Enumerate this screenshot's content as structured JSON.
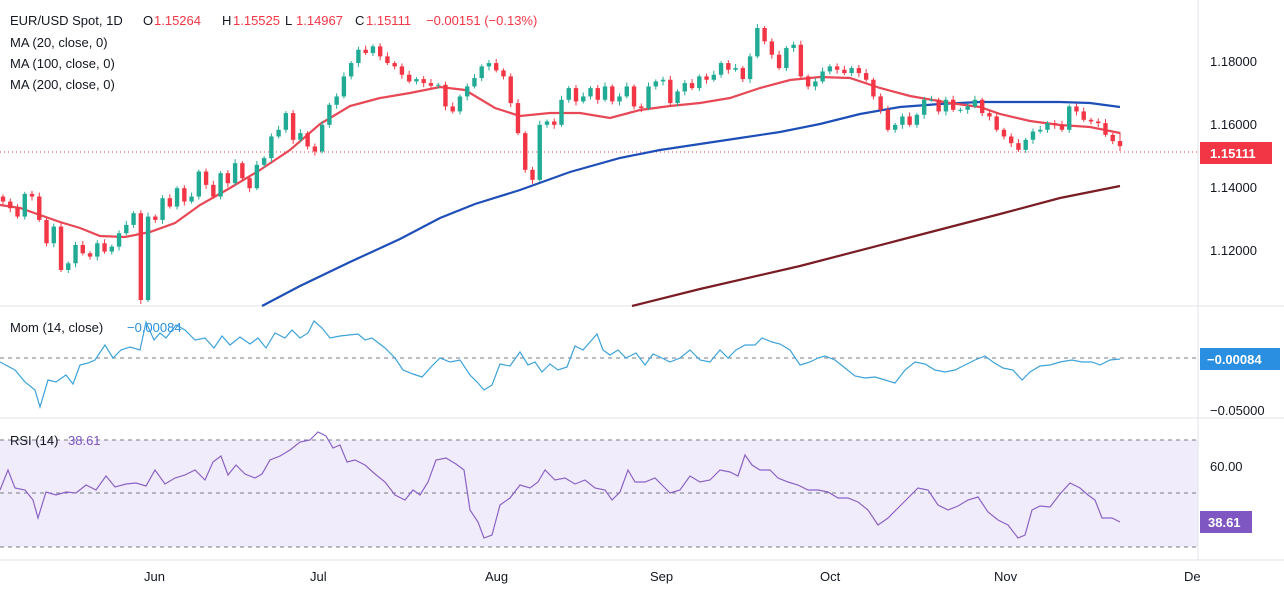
{
  "header": {
    "symbol": "EUR/USD Spot, 1D",
    "open_label": "O",
    "open": "1.15264",
    "high_label": "H",
    "high": "1.15525",
    "low_label": "L",
    "low": "1.14967",
    "close_label": "C",
    "close": "1.15111",
    "change": "−0.00151 (−0.13%)"
  },
  "legend": {
    "ma20": "MA (20, close, 0)",
    "ma100": "MA (100, close, 0)",
    "ma200": "MA (200, close, 0)",
    "mom": "Mom (14, close)",
    "mom_value": "−0.00084",
    "rsi": "RSI (14)",
    "rsi_value": "38.61"
  },
  "badges": {
    "price": "1.15111",
    "mom": "−0.00084",
    "rsi": "38.61"
  },
  "colors": {
    "up": "#22ab94",
    "down": "#f23645",
    "ma20": "#e84855",
    "ma100": "#1e4fb8",
    "ma200": "#7a1c24",
    "mom": "#3da3d9",
    "rsi": "#8a63c5",
    "rsi_band": "#f1ecfb",
    "price_badge": "#f23645",
    "mom_badge": "#2a8fe0",
    "rsi_badge": "#7e57c2"
  },
  "chart_data": [
    {
      "type": "candlestick",
      "title": "EUR/USD Spot, 1D",
      "x_ticks": [
        "Jun",
        "Jul",
        "Aug",
        "Sep",
        "Oct",
        "Nov",
        "De"
      ],
      "y_ticks": [
        "1.18000",
        "1.16000",
        "1.14000",
        "1.12000"
      ],
      "ylim": [
        1.1032,
        1.1925
      ],
      "last": {
        "open": 1.15264,
        "high": 1.15525,
        "low": 1.14967,
        "close": 1.15111
      },
      "closes": [
        1.1345,
        1.1325,
        1.13,
        1.1368,
        1.136,
        1.129,
        1.122,
        1.127,
        1.114,
        1.116,
        1.1215,
        1.119,
        1.118,
        1.122,
        1.1195,
        1.121,
        1.125,
        1.1275,
        1.131,
        1.105,
        1.13,
        1.129,
        1.1355,
        1.133,
        1.1385,
        1.1345,
        1.136,
        1.1435,
        1.1395,
        1.136,
        1.143,
        1.14,
        1.146,
        1.1415,
        1.1385,
        1.1455,
        1.1475,
        1.154,
        1.156,
        1.161,
        1.153,
        1.155,
        1.151,
        1.1495,
        1.1575,
        1.1635,
        1.166,
        1.172,
        1.176,
        1.18,
        1.179,
        1.181,
        1.178,
        1.176,
        1.175,
        1.1725,
        1.1705,
        1.1712,
        1.17,
        1.1692,
        1.1695,
        1.163,
        1.1615,
        1.166,
        1.169,
        1.1715,
        1.175,
        1.176,
        1.1738,
        1.172,
        1.164,
        1.155,
        1.144,
        1.141,
        1.1575,
        1.1585,
        1.1575,
        1.165,
        1.1685,
        1.1645,
        1.166,
        1.1685,
        1.165,
        1.169,
        1.1645,
        1.166,
        1.169,
        1.163,
        1.1625,
        1.169,
        1.1705,
        1.171,
        1.164,
        1.1675,
        1.17,
        1.1685,
        1.172,
        1.171,
        1.1725,
        1.176,
        1.174,
        1.1745,
        1.1712,
        1.178,
        1.1865,
        1.1825,
        1.1785,
        1.1745,
        1.1805,
        1.1815,
        1.172,
        1.169,
        1.1705,
        1.1735,
        1.175,
        1.174,
        1.173,
        1.1745,
        1.173,
        1.171,
        1.166,
        1.162,
        1.156,
        1.1575,
        1.16,
        1.1575,
        1.1605,
        1.165,
        1.165,
        1.1615,
        1.165,
        1.162,
        1.162,
        1.163,
        1.165,
        1.161,
        1.16,
        1.156,
        1.154,
        1.152,
        1.15,
        1.153,
        1.1555,
        1.156,
        1.158,
        1.1575,
        1.156,
        1.163,
        1.1615,
        1.159,
        1.1585,
        1.158,
        1.1545,
        1.1526,
        1.1511
      ]
    },
    {
      "type": "line",
      "name": "Mom (14, close)",
      "y_ticks": [
        "−0.05000"
      ],
      "last_value": -0.00084
    },
    {
      "type": "line",
      "name": "RSI (14)",
      "y_ticks": [
        "60.00"
      ],
      "band": [
        30,
        70
      ],
      "mid": 50,
      "last_value": 38.61
    }
  ]
}
